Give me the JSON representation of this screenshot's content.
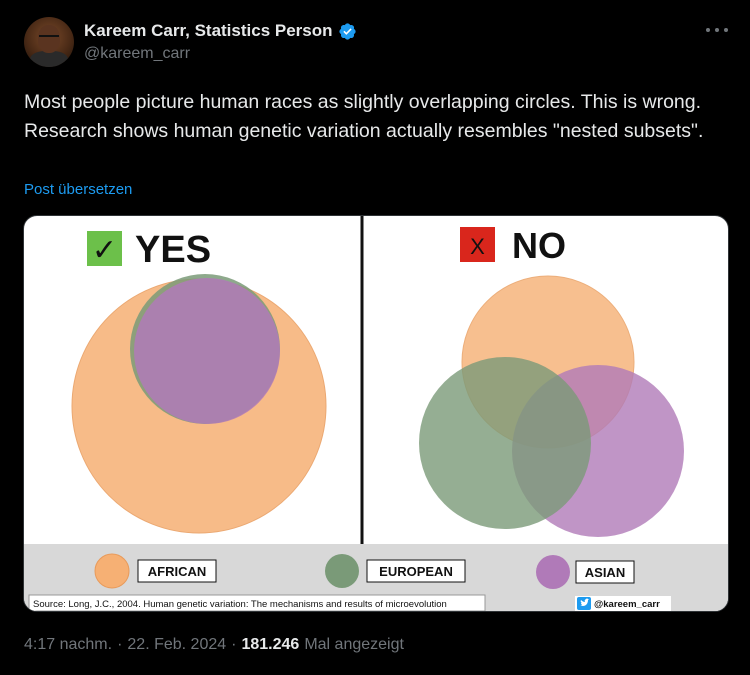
{
  "author": {
    "display_name": "Kareem Carr, Statistics Person",
    "handle": "@kareem_carr"
  },
  "tweet": {
    "text": "Most people picture human races as slightly overlapping circles. This is wrong. Research shows human genetic variation actually resembles \"nested subsets\".",
    "translate_label": "Post übersetzen"
  },
  "image": {
    "yes_label": "YES",
    "no_label": "NO",
    "check_mark": "✓",
    "x_mark": "X",
    "legend": {
      "african": "AFRICAN",
      "european": "EUROPEAN",
      "asian": "ASIAN"
    },
    "source": "Source: Long, J.C., 2004. Human genetic variation:  The mechanisms and results of microevolution",
    "watermark": "@kareem_carr",
    "colors": {
      "african": "#f6b074",
      "european": "#7a9a78",
      "asian": "#b07ab8",
      "check_bg": "#6cc04a",
      "x_bg": "#d9261c"
    }
  },
  "footer": {
    "time": "4:17 nachm.",
    "date": "22. Feb. 2024",
    "views": "181.246",
    "views_label": "Mal angezeigt"
  }
}
